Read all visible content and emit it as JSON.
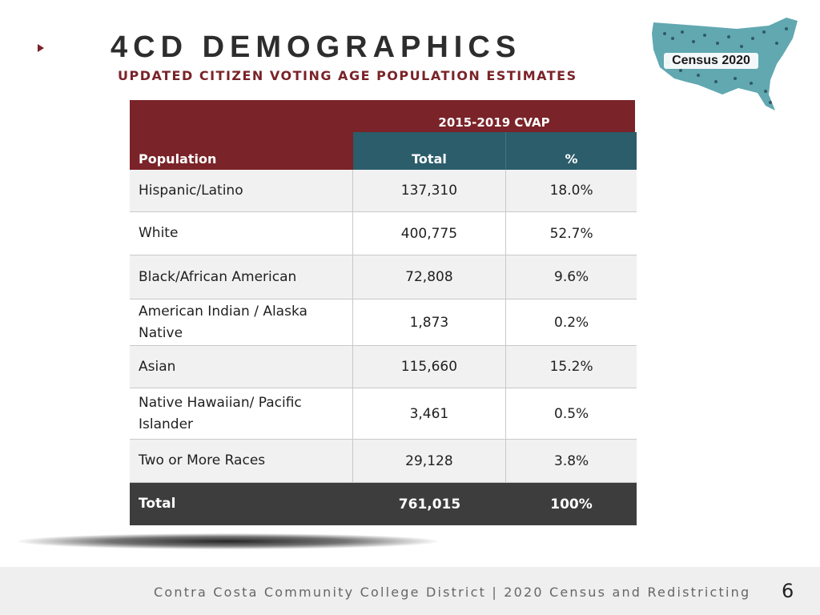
{
  "slide": {
    "title": "4CD DEMOGRAPHICS",
    "subtitle": "UPDATED CITIZEN VOTING AGE POPULATION ESTIMATES",
    "logo_text": "Census 2020",
    "footer": "Contra Costa Community College District | 2020 Census and Redistricting",
    "page_number": "6"
  },
  "table": {
    "group_header": "2015-2019 CVAP",
    "columns": [
      "Population",
      "Total",
      "%"
    ],
    "rows": [
      {
        "population": "Hispanic/Latino",
        "total": "137,310",
        "pct": "18.0%"
      },
      {
        "population": "White",
        "total": "400,775",
        "pct": "52.7%"
      },
      {
        "population": "Black/African American",
        "total": "72,808",
        "pct": "9.6%"
      },
      {
        "population": "American Indian / Alaska Native",
        "total": "1,873",
        "pct": "0.2%"
      },
      {
        "population": "Asian",
        "total": "115,660",
        "pct": "15.2%"
      },
      {
        "population": "Native Hawaiian/ Pacific Islander",
        "total": "3,461",
        "pct": "0.5%"
      },
      {
        "population": "Two or More Races",
        "total": "29,128",
        "pct": "3.8%"
      }
    ],
    "total_row": {
      "population": "Total",
      "total": "761,015",
      "pct": "100%"
    }
  },
  "colors": {
    "maroon": "#7a2328",
    "teal": "#2c5d6b",
    "total_row": "#3d3d3d",
    "stripe": "#f1f1f1"
  },
  "icons": [
    "bullet-triangle-icon",
    "census-map-logo"
  ]
}
